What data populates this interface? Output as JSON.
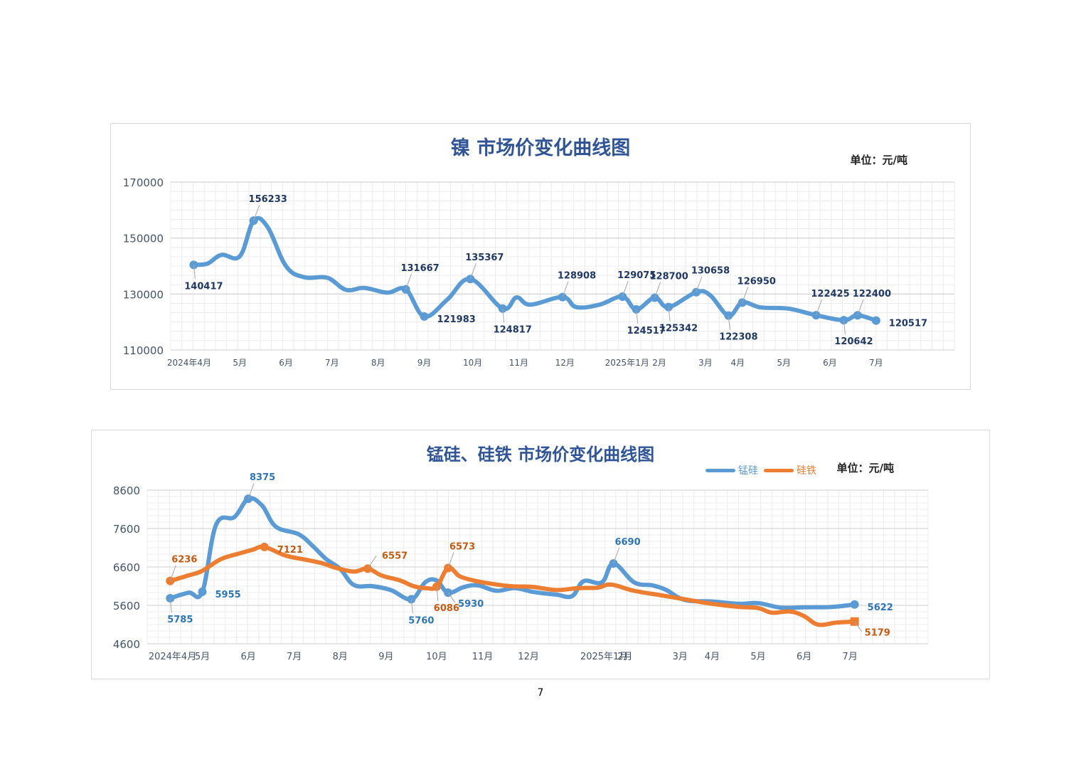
{
  "page_number": "7",
  "chart_data": [
    {
      "type": "line",
      "title": "镍 市场价变化曲线图",
      "unit_label": "单位：元/吨",
      "xlabel": "",
      "ylabel": "",
      "ylim": [
        110000,
        170000
      ],
      "yticks": [
        110000,
        130000,
        150000,
        170000
      ],
      "xlim": [
        0,
        17
      ],
      "xticks": [
        {
          "x": 0.4,
          "label": "2024年4月"
        },
        {
          "x": 1.5,
          "label": "5月"
        },
        {
          "x": 2.5,
          "label": "6月"
        },
        {
          "x": 3.5,
          "label": "7月"
        },
        {
          "x": 4.5,
          "label": "8月"
        },
        {
          "x": 5.5,
          "label": "9月"
        },
        {
          "x": 6.55,
          "label": "10月"
        },
        {
          "x": 7.55,
          "label": "11月"
        },
        {
          "x": 8.55,
          "label": "12月"
        },
        {
          "x": 9.9,
          "label": "2025年1月"
        },
        {
          "x": 10.6,
          "label": "2月"
        },
        {
          "x": 11.6,
          "label": "3月"
        },
        {
          "x": 12.3,
          "label": "4月"
        },
        {
          "x": 13.3,
          "label": "5月"
        },
        {
          "x": 14.3,
          "label": "6月"
        },
        {
          "x": 15.3,
          "label": "7月"
        }
      ],
      "series": [
        {
          "name": "镍",
          "color": "#5b9bd5",
          "points": [
            [
              0.5,
              140417
            ],
            [
              0.8,
              140900
            ],
            [
              1.1,
              144000
            ],
            [
              1.5,
              143500
            ],
            [
              1.8,
              156233
            ],
            [
              2.1,
              154000
            ],
            [
              2.5,
              140000
            ],
            [
              2.9,
              136000
            ],
            [
              3.4,
              135800
            ],
            [
              3.8,
              131500
            ],
            [
              4.2,
              132200
            ],
            [
              4.7,
              130500
            ],
            [
              5.1,
              131667
            ],
            [
              5.5,
              121983
            ],
            [
              6.0,
              128000
            ],
            [
              6.5,
              135367
            ],
            [
              7.2,
              124817
            ],
            [
              7.5,
              128800
            ],
            [
              7.8,
              126200
            ],
            [
              8.5,
              128908
            ],
            [
              8.8,
              125300
            ],
            [
              9.3,
              126200
            ],
            [
              9.8,
              129075
            ],
            [
              10.1,
              124517
            ],
            [
              10.5,
              128700
            ],
            [
              10.8,
              125342
            ],
            [
              11.4,
              130658
            ],
            [
              11.7,
              129600
            ],
            [
              12.1,
              122308
            ],
            [
              12.4,
              126950
            ],
            [
              12.8,
              125200
            ],
            [
              13.4,
              124800
            ],
            [
              14.0,
              122425
            ],
            [
              14.6,
              120642
            ],
            [
              14.9,
              122400
            ],
            [
              15.3,
              120517
            ]
          ],
          "data_labels": [
            {
              "x": 0.5,
              "y": 140417,
              "text": "140417",
              "pos": "below"
            },
            {
              "x": 1.8,
              "y": 156233,
              "text": "156233",
              "pos": "above"
            },
            {
              "x": 5.1,
              "y": 131667,
              "text": "131667",
              "pos": "above"
            },
            {
              "x": 5.5,
              "y": 121983,
              "text": "121983",
              "pos": "right"
            },
            {
              "x": 6.5,
              "y": 135367,
              "text": "135367",
              "pos": "above"
            },
            {
              "x": 7.2,
              "y": 124817,
              "text": "124817",
              "pos": "below"
            },
            {
              "x": 8.5,
              "y": 128908,
              "text": "128908",
              "pos": "above"
            },
            {
              "x": 9.8,
              "y": 129075,
              "text": "129075",
              "pos": "above"
            },
            {
              "x": 10.1,
              "y": 124517,
              "text": "124517",
              "pos": "below"
            },
            {
              "x": 10.5,
              "y": 128700,
              "text": "128700",
              "pos": "above"
            },
            {
              "x": 10.8,
              "y": 125342,
              "text": "125342",
              "pos": "below"
            },
            {
              "x": 11.4,
              "y": 130658,
              "text": "130658",
              "pos": "above"
            },
            {
              "x": 12.1,
              "y": 122308,
              "text": "122308",
              "pos": "below"
            },
            {
              "x": 12.4,
              "y": 126950,
              "text": "126950",
              "pos": "above"
            },
            {
              "x": 14.0,
              "y": 122425,
              "text": "122425",
              "pos": "above"
            },
            {
              "x": 14.6,
              "y": 120642,
              "text": "120642",
              "pos": "below"
            },
            {
              "x": 14.9,
              "y": 122400,
              "text": "122400",
              "pos": "above"
            },
            {
              "x": 15.3,
              "y": 120517,
              "text": "120517",
              "pos": "right"
            }
          ]
        }
      ]
    },
    {
      "type": "line",
      "title": "锰硅、硅铁 市场价变化曲线图",
      "unit_label": "单位：元/吨",
      "xlabel": "",
      "ylabel": "",
      "ylim": [
        4600,
        8600
      ],
      "yticks": [
        4600,
        5600,
        6600,
        7600,
        8600
      ],
      "xlim": [
        0,
        17
      ],
      "legend": [
        "锰硅",
        "硅铁"
      ],
      "xticks": [
        {
          "x": 0.55,
          "label": "2024年4月"
        },
        {
          "x": 1.2,
          "label": "5月"
        },
        {
          "x": 2.2,
          "label": "6月"
        },
        {
          "x": 3.2,
          "label": "7月"
        },
        {
          "x": 4.2,
          "label": "8月"
        },
        {
          "x": 5.2,
          "label": "9月"
        },
        {
          "x": 6.3,
          "label": "10月"
        },
        {
          "x": 7.3,
          "label": "11月"
        },
        {
          "x": 8.3,
          "label": "12月"
        },
        {
          "x": 9.95,
          "label": "2025年1月"
        },
        {
          "x": 10.4,
          "label": "2月"
        },
        {
          "x": 11.6,
          "label": "3月"
        },
        {
          "x": 12.3,
          "label": "4月"
        },
        {
          "x": 13.3,
          "label": "5月"
        },
        {
          "x": 14.3,
          "label": "6月"
        },
        {
          "x": 15.3,
          "label": "7月"
        }
      ],
      "series": [
        {
          "name": "锰硅",
          "color": "#5b9bd5",
          "points": [
            [
              0.5,
              5785
            ],
            [
              0.9,
              5930
            ],
            [
              1.2,
              5955
            ],
            [
              1.5,
              7700
            ],
            [
              1.9,
              7900
            ],
            [
              2.2,
              8375
            ],
            [
              2.5,
              8200
            ],
            [
              2.8,
              7650
            ],
            [
              3.3,
              7450
            ],
            [
              3.6,
              7150
            ],
            [
              3.9,
              6800
            ],
            [
              4.2,
              6550
            ],
            [
              4.5,
              6130
            ],
            [
              4.9,
              6100
            ],
            [
              5.3,
              6000
            ],
            [
              5.75,
              5760
            ],
            [
              6.05,
              6200
            ],
            [
              6.3,
              6250
            ],
            [
              6.55,
              5930
            ],
            [
              6.9,
              6080
            ],
            [
              7.2,
              6120
            ],
            [
              7.6,
              5980
            ],
            [
              8.0,
              6050
            ],
            [
              8.4,
              5950
            ],
            [
              8.9,
              5880
            ],
            [
              9.25,
              5840
            ],
            [
              9.5,
              6230
            ],
            [
              9.9,
              6200
            ],
            [
              10.15,
              6690
            ],
            [
              10.6,
              6200
            ],
            [
              11.0,
              6120
            ],
            [
              11.3,
              6000
            ],
            [
              11.7,
              5740
            ],
            [
              12.3,
              5700
            ],
            [
              12.9,
              5640
            ],
            [
              13.3,
              5660
            ],
            [
              13.8,
              5540
            ],
            [
              14.3,
              5550
            ],
            [
              14.9,
              5560
            ],
            [
              15.4,
              5622
            ]
          ],
          "data_labels": [
            {
              "x": 0.5,
              "y": 5785,
              "text": "5785",
              "pos": "below"
            },
            {
              "x": 1.2,
              "y": 5955,
              "text": "5955",
              "pos": "right"
            },
            {
              "x": 2.2,
              "y": 8375,
              "text": "8375",
              "pos": "above"
            },
            {
              "x": 5.75,
              "y": 5760,
              "text": "5760",
              "pos": "below"
            },
            {
              "x": 6.55,
              "y": 5930,
              "text": "5930",
              "pos": "belowright"
            },
            {
              "x": 10.15,
              "y": 6690,
              "text": "6690",
              "pos": "above"
            },
            {
              "x": 15.4,
              "y": 5622,
              "text": "5622",
              "pos": "right"
            }
          ]
        },
        {
          "name": "硅铁",
          "color": "#ed7d31",
          "points": [
            [
              0.5,
              6236
            ],
            [
              0.9,
              6380
            ],
            [
              1.2,
              6500
            ],
            [
              1.6,
              6800
            ],
            [
              2.0,
              6950
            ],
            [
              2.3,
              7050
            ],
            [
              2.55,
              7121
            ],
            [
              3.0,
              6900
            ],
            [
              3.4,
              6800
            ],
            [
              3.8,
              6700
            ],
            [
              4.1,
              6580
            ],
            [
              4.5,
              6480
            ],
            [
              4.8,
              6557
            ],
            [
              5.1,
              6380
            ],
            [
              5.5,
              6250
            ],
            [
              5.8,
              6100
            ],
            [
              6.05,
              6050
            ],
            [
              6.3,
              6086
            ],
            [
              6.55,
              6573
            ],
            [
              6.8,
              6360
            ],
            [
              7.1,
              6250
            ],
            [
              7.4,
              6180
            ],
            [
              7.9,
              6100
            ],
            [
              8.4,
              6080
            ],
            [
              8.9,
              6000
            ],
            [
              9.4,
              6050
            ],
            [
              9.8,
              6060
            ],
            [
              10.1,
              6140
            ],
            [
              10.6,
              5980
            ],
            [
              11.2,
              5860
            ],
            [
              11.7,
              5760
            ],
            [
              12.3,
              5640
            ],
            [
              12.9,
              5560
            ],
            [
              13.3,
              5530
            ],
            [
              13.6,
              5410
            ],
            [
              14.0,
              5440
            ],
            [
              14.3,
              5320
            ],
            [
              14.6,
              5100
            ],
            [
              15.0,
              5150
            ],
            [
              15.4,
              5179
            ]
          ],
          "data_labels": [
            {
              "x": 0.5,
              "y": 6236,
              "text": "6236",
              "pos": "above"
            },
            {
              "x": 2.55,
              "y": 7121,
              "text": "7121",
              "pos": "right"
            },
            {
              "x": 4.8,
              "y": 6557,
              "text": "6557",
              "pos": "aboveright"
            },
            {
              "x": 6.3,
              "y": 6086,
              "text": "6086",
              "pos": "below"
            },
            {
              "x": 6.55,
              "y": 6573,
              "text": "6573",
              "pos": "above"
            },
            {
              "x": 15.4,
              "y": 5179,
              "text": "5179",
              "pos": "belowright"
            }
          ]
        }
      ]
    }
  ]
}
